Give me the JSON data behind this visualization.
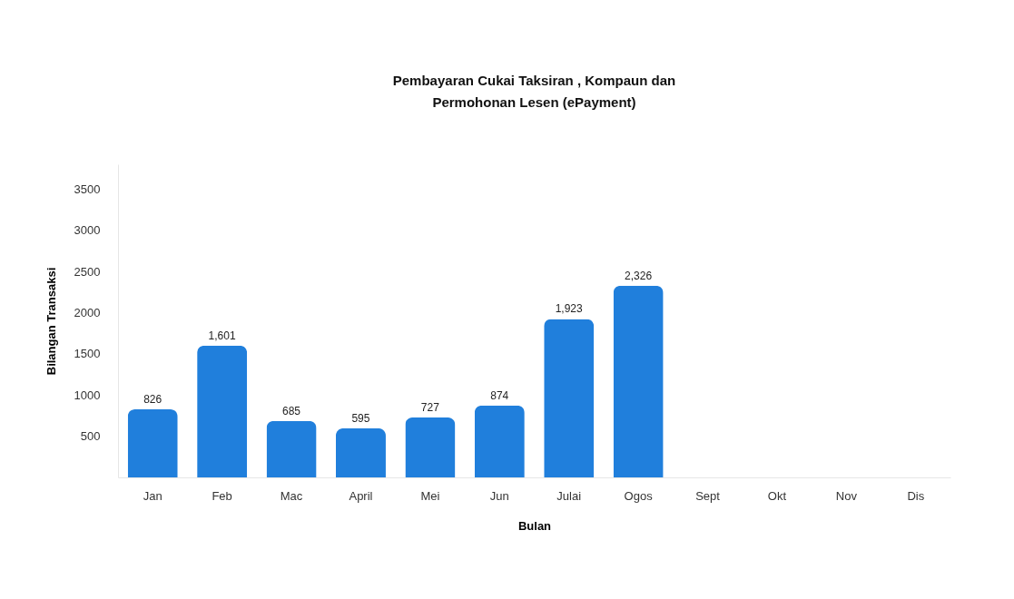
{
  "chart_data": {
    "type": "bar",
    "title": [
      "Pembayaran Cukai Taksiran , Kompaun dan",
      "Permohonan Lesen (ePayment)"
    ],
    "xlabel": "Bulan",
    "ylabel": "Bilangan Transaksi",
    "categories": [
      "Jan",
      "Feb",
      "Mac",
      "April",
      "Mei",
      "Jun",
      "Julai",
      "Ogos",
      "Sept",
      "Okt",
      "Nov",
      "Dis"
    ],
    "values": [
      826,
      1601,
      685,
      595,
      727,
      874,
      1923,
      2326,
      null,
      null,
      null,
      null
    ],
    "value_labels": [
      "826",
      "1,601",
      "685",
      "595",
      "727",
      "874",
      "1,923",
      "2,326",
      null,
      null,
      null,
      null
    ],
    "color": "#207fdc",
    "ylim": [
      0,
      3800
    ],
    "yticks": [
      500,
      1000,
      1500,
      2000,
      2500,
      3000,
      3500
    ],
    "grid": false
  }
}
